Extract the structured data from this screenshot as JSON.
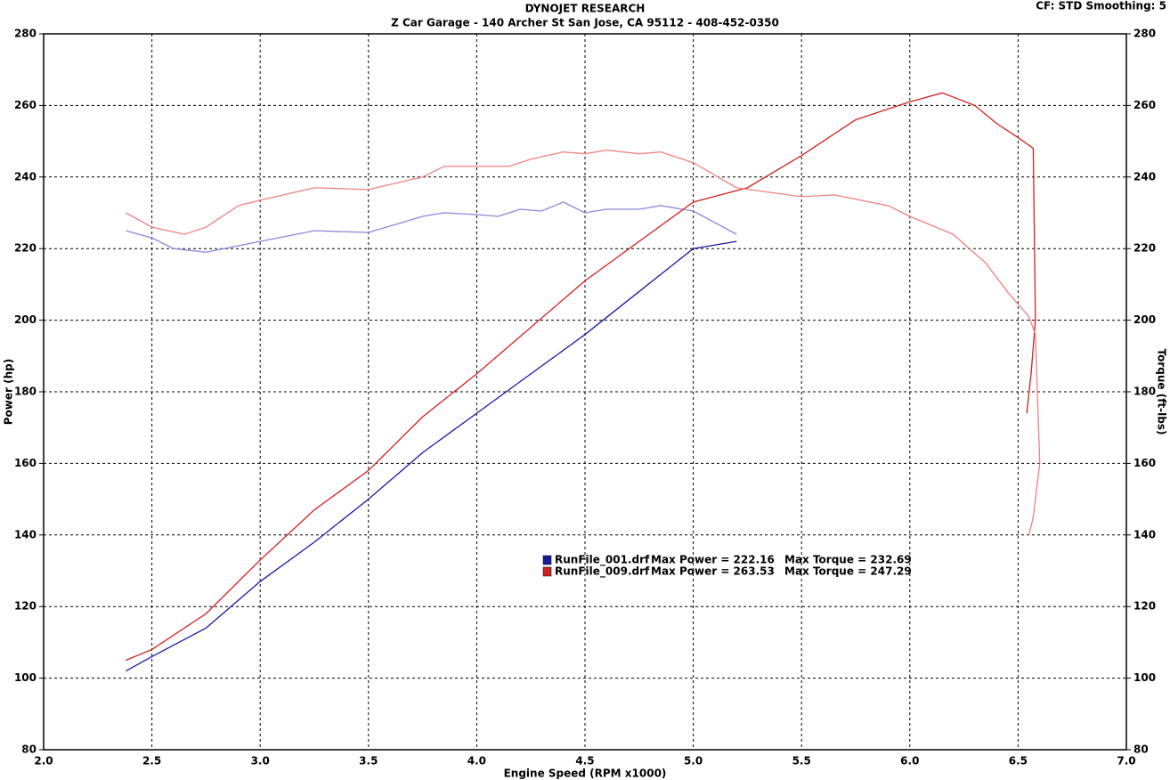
{
  "chart_data": {
    "type": "line",
    "title": "DYNOJET RESEARCH",
    "subtitle": "Z Car Garage - 140 Archer St San Jose, CA 95112 - 408-452-0350",
    "annotation": "CF: STD  Smoothing: 5",
    "xlabel": "Engine Speed (RPM x1000)",
    "ylabel": "Power (hp)",
    "y2label": "Torque (ft-lbs)",
    "xlim": [
      2,
      7
    ],
    "xticks": [
      {
        "value": 2,
        "label": "2.0"
      },
      2.5,
      {
        "value": 3,
        "label": "3.0"
      },
      3.5,
      {
        "value": 4,
        "label": "4.0"
      },
      4.5,
      {
        "value": 5,
        "label": "5.0"
      },
      5.5,
      {
        "value": 6,
        "label": "6.0"
      },
      6.5,
      {
        "value": 7,
        "label": "7.0"
      }
    ],
    "ylim": [
      80,
      280
    ],
    "yticks": [
      80,
      100,
      120,
      140,
      160,
      180,
      200,
      220,
      240,
      260,
      280
    ],
    "y2lim": [
      80,
      280
    ],
    "y2ticks": [
      80,
      100,
      120,
      140,
      160,
      180,
      200,
      220,
      240,
      260,
      280
    ],
    "grid": true,
    "legend": [
      {
        "name": "RunFile_001.drf",
        "power": "Max Power = 222.16",
        "torque": "Max Torque = 232.69",
        "color": "#1a1aa0"
      },
      {
        "name": "RunFile_009.drf",
        "power": "Max Power = 263.53",
        "torque": "Max Torque = 247.29",
        "color": "#d02020"
      }
    ],
    "series": [
      {
        "name": "RunFile_001.drf",
        "color": "#1a1aa0",
        "axis": "y",
        "x": [
          2.38,
          2.5,
          2.75,
          3.0,
          3.25,
          3.5,
          3.75,
          4.0,
          4.25,
          4.5,
          4.75,
          5.0,
          5.2
        ],
        "values": [
          102,
          106,
          114,
          127,
          138,
          150,
          163,
          174,
          185,
          196,
          208,
          220,
          222
        ]
      },
      {
        "name": "RunFile_001.drf",
        "color": "#8888dd",
        "axis": "y2",
        "x": [
          2.38,
          2.5,
          2.6,
          2.75,
          3.0,
          3.25,
          3.5,
          3.75,
          3.85,
          4.0,
          4.1,
          4.2,
          4.3,
          4.4,
          4.5,
          4.6,
          4.75,
          4.85,
          5.0,
          5.2
        ],
        "values": [
          225,
          223,
          220,
          219,
          222,
          225,
          224.5,
          229,
          230,
          229.5,
          229,
          231,
          230.5,
          233,
          230,
          231,
          231,
          232,
          230.5,
          224
        ]
      },
      {
        "name": "RunFile_009.drf",
        "color": "#d02020",
        "axis": "y",
        "x": [
          2.38,
          2.5,
          2.75,
          3.0,
          3.25,
          3.5,
          3.75,
          4.0,
          4.25,
          4.5,
          4.75,
          5.0,
          5.25,
          5.5,
          5.75,
          6.0,
          6.15,
          6.3,
          6.4,
          6.5,
          6.57,
          6.58,
          6.56,
          6.54
        ],
        "values": [
          105,
          108,
          118,
          133,
          147,
          158,
          173,
          185,
          198,
          211,
          222,
          233,
          237,
          246,
          256,
          261,
          263.5,
          260,
          255,
          251,
          248,
          200,
          185,
          174
        ]
      },
      {
        "name": "RunFile_009.drf",
        "color": "#f08080",
        "axis": "y2",
        "x": [
          2.38,
          2.5,
          2.65,
          2.75,
          2.9,
          3.0,
          3.25,
          3.5,
          3.75,
          3.85,
          4.0,
          4.15,
          4.25,
          4.4,
          4.5,
          4.6,
          4.75,
          4.85,
          5.0,
          5.2,
          5.5,
          5.65,
          5.9,
          6.0,
          6.2,
          6.35,
          6.45,
          6.55,
          6.58,
          6.6,
          6.57,
          6.55
        ],
        "values": [
          230,
          226,
          224,
          226,
          232,
          233.5,
          237,
          236.5,
          240,
          243,
          243,
          243,
          245,
          247,
          246.5,
          247.5,
          246.5,
          247,
          244,
          237,
          234.5,
          235,
          232,
          229,
          224,
          216,
          208,
          201,
          196,
          160,
          145,
          140
        ]
      }
    ]
  }
}
